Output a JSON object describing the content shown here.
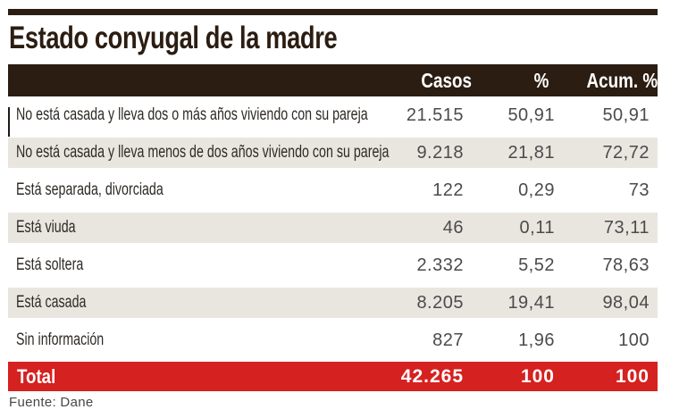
{
  "chart_data": {
    "type": "table",
    "title": "Estado conyugal de la madre",
    "columns": [
      "Casos",
      "%",
      "Acum. %"
    ],
    "rows": [
      {
        "label": "No está casada y lleva dos o más años viviendo con su pareja",
        "casos": "21.515",
        "pct": "50,91",
        "acum": "50,91"
      },
      {
        "label": "No está casada y lleva menos de dos años viviendo con su pareja",
        "casos": "9.218",
        "pct": "21,81",
        "acum": "72,72"
      },
      {
        "label": "Está separada, divorciada",
        "casos": "122",
        "pct": "0,29",
        "acum": "73"
      },
      {
        "label": "Está viuda",
        "casos": "46",
        "pct": "0,11",
        "acum": "73,11"
      },
      {
        "label": "Está soltera",
        "casos": "2.332",
        "pct": "5,52",
        "acum": "78,63"
      },
      {
        "label": "Está casada",
        "casos": "8.205",
        "pct": "19,41",
        "acum": "98,04"
      },
      {
        "label": "Sin información",
        "casos": "827",
        "pct": "1,96",
        "acum": "100"
      }
    ],
    "total": {
      "label": "Total",
      "casos": "42.265",
      "pct": "100",
      "acum": "100"
    },
    "source": "Fuente: Dane",
    "layout": {
      "legend": "none",
      "grid": "row-stripes"
    }
  },
  "colors": {
    "header_bg": "#2b1d12",
    "total_bg": "#d52120",
    "stripe_bg": "#e9e6e0",
    "title_text": "#2b1d12",
    "number_text": "#4b4b4b"
  }
}
